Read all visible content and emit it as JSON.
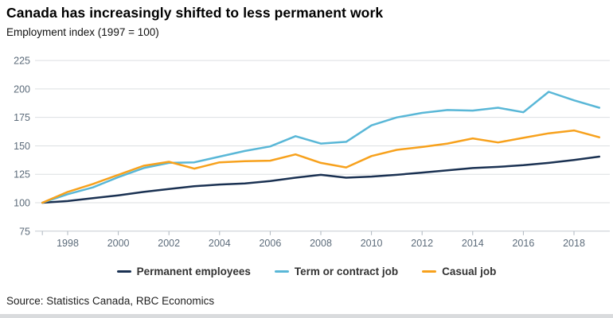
{
  "header": {
    "title": "Canada has increasingly shifted to less permanent work",
    "subtitle": "Employment index (1997 = 100)"
  },
  "source": "Source: Statistics Canada, RBC Economics",
  "chart_data": {
    "type": "line",
    "title": "Canada has increasingly shifted to less permanent work",
    "subtitle": "Employment index (1997 = 100)",
    "xlabel": "",
    "ylabel": "Employment index (1997 = 100)",
    "grid": true,
    "legend_position": "bottom",
    "xlim": [
      1997,
      2019
    ],
    "ylim": [
      75,
      225
    ],
    "y_ticks": [
      75,
      100,
      125,
      150,
      175,
      200,
      225
    ],
    "x_tick_labels": [
      1998,
      2000,
      2002,
      2004,
      2006,
      2008,
      2010,
      2012,
      2014,
      2016,
      2018
    ],
    "x_axis_ticks": [
      1997,
      1998,
      2000,
      2002,
      2004,
      2006,
      2008,
      2010,
      2012,
      2014,
      2016,
      2018
    ],
    "x": [
      1997,
      1998,
      1999,
      2000,
      2001,
      2002,
      2003,
      2004,
      2005,
      2006,
      2007,
      2008,
      2009,
      2010,
      2011,
      2012,
      2013,
      2014,
      2015,
      2016,
      2017,
      2018,
      2019
    ],
    "series": [
      {
        "name": "Permanent employees",
        "color": "#1a3152",
        "values": [
          100,
          101.5,
          104,
          106.5,
          109.5,
          112,
          114.5,
          116,
          117,
          119,
          122,
          124.5,
          122,
          123,
          124.5,
          126.5,
          128.5,
          130.5,
          131.5,
          133,
          135,
          137.5,
          140.5
        ]
      },
      {
        "name": "Term or contract job",
        "color": "#59b7d7",
        "values": [
          100,
          107.5,
          113.5,
          122.5,
          130.5,
          135,
          135.5,
          140.5,
          145.5,
          149.5,
          158.5,
          152,
          153.5,
          168,
          175,
          179,
          181.5,
          181,
          183.5,
          179.5,
          197.5,
          190,
          183.5
        ]
      },
      {
        "name": "Casual job",
        "color": "#f7a11c",
        "values": [
          100,
          109.5,
          116.5,
          124.5,
          132.5,
          136,
          130,
          135.5,
          136.5,
          137,
          142.5,
          135,
          131,
          141,
          146.5,
          149,
          152,
          156.5,
          153,
          157,
          161,
          163.5,
          157.5
        ]
      }
    ]
  }
}
